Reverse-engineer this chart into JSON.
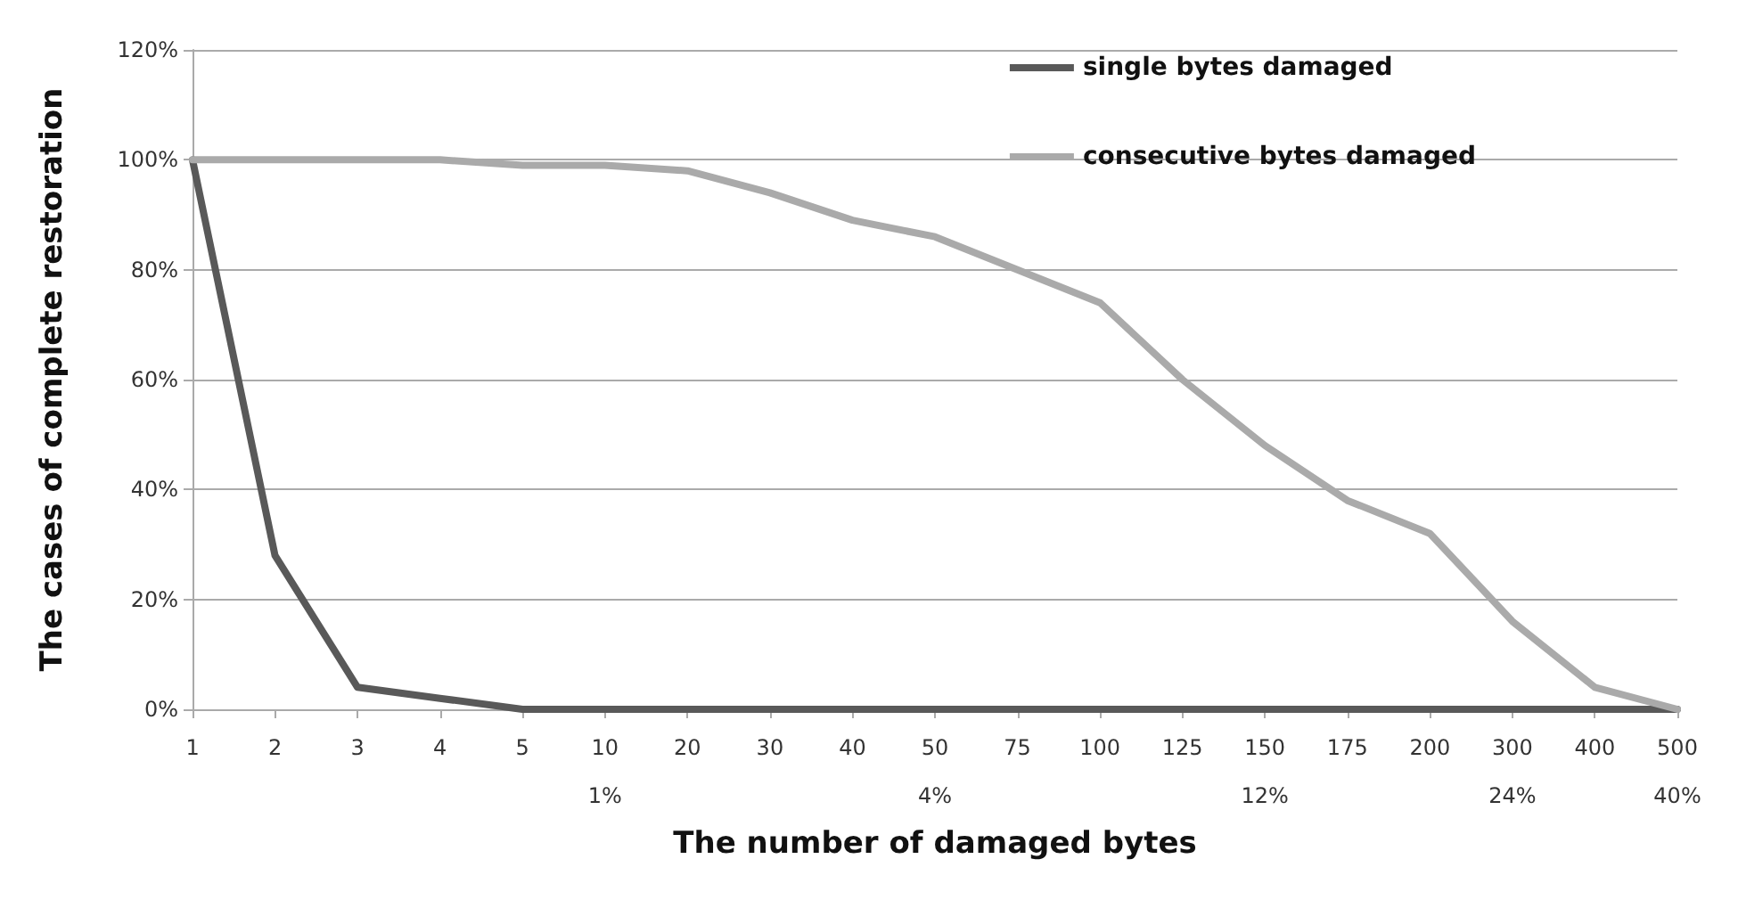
{
  "chart_data": {
    "type": "line",
    "xlabel": "The number of damaged bytes",
    "ylabel": "The cases of complete restoration",
    "categories": [
      "1",
      "2",
      "3",
      "4",
      "5",
      "10\n1%",
      "20",
      "30",
      "40",
      "50\n4%",
      "75",
      "100",
      "125",
      "150\n12%",
      "175",
      "200",
      "300\n24%",
      "400",
      "500\n40%"
    ],
    "series": [
      {
        "name": "single bytes damaged",
        "color": "#595959",
        "values": [
          100,
          28,
          4,
          2,
          0,
          0,
          0,
          0,
          0,
          0,
          0,
          0,
          0,
          0,
          0,
          0,
          0,
          0,
          0
        ]
      },
      {
        "name": "consecutive bytes damaged",
        "color": "#aaaaaa",
        "values": [
          100,
          100,
          100,
          100,
          99,
          99,
          98,
          94,
          89,
          86,
          80,
          74,
          60,
          48,
          38,
          32,
          16,
          4,
          0
        ]
      }
    ],
    "ylim": [
      0,
      120
    ],
    "yticks": [
      {
        "value": 0,
        "label": "0%"
      },
      {
        "value": 20,
        "label": "20%"
      },
      {
        "value": 40,
        "label": "40%"
      },
      {
        "value": 60,
        "label": "60%"
      },
      {
        "value": 80,
        "label": "80%"
      },
      {
        "value": 100,
        "label": "100%"
      },
      {
        "value": 120,
        "label": "120%"
      }
    ],
    "grid": "y",
    "legend": "top right",
    "marker": "none",
    "line_style": "solid"
  }
}
